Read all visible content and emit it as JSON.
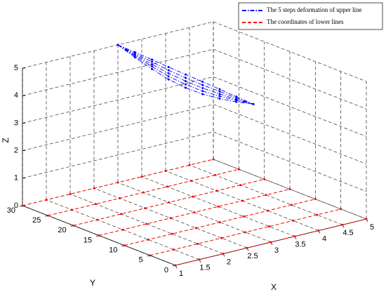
{
  "chart_data": {
    "type": "line3d",
    "xlabel": "X",
    "ylabel": "Y",
    "zlabel": "Z",
    "xlim": [
      1,
      5
    ],
    "ylim": [
      0,
      30
    ],
    "zlim": [
      0,
      5
    ],
    "xticks": [
      1,
      1.5,
      2,
      2.5,
      3,
      3.5,
      4,
      4.5,
      5
    ],
    "yticks": [
      0,
      5,
      10,
      15,
      20,
      25,
      30
    ],
    "zticks": [
      0,
      1,
      2,
      3,
      4,
      5
    ],
    "grid": true,
    "legend": "upper right",
    "series": [
      {
        "name": "The 5 steps deformation of upper line",
        "color": "#0000ff",
        "style": "dashdot",
        "lines": [
          {
            "x": [
              3,
              3.09,
              3.18,
              3.26,
              3.35,
              3.44,
              3.53,
              3.61,
              3.7
            ],
            "y": [
              30,
              27.5,
              25,
              22.5,
              20,
              17.5,
              15,
              12.5,
              10
            ],
            "z": [
              5,
              4.88,
              4.75,
              4.63,
              4.5,
              4.38,
              4.25,
              4.13,
              4
            ]
          },
          {
            "x": [
              3,
              3.09,
              3.18,
              3.26,
              3.35,
              3.44,
              3.53,
              3.61,
              3.7
            ],
            "y": [
              30,
              27.5,
              25,
              22.5,
              20,
              17.5,
              15,
              12.5,
              10
            ],
            "z": [
              5,
              4.83,
              4.67,
              4.51,
              4.38,
              4.26,
              4.17,
              4.08,
              4
            ]
          },
          {
            "x": [
              3,
              3.09,
              3.18,
              3.26,
              3.35,
              3.44,
              3.53,
              3.61,
              3.7
            ],
            "y": [
              30,
              27.5,
              25,
              22.5,
              20,
              17.5,
              15,
              12.5,
              10
            ],
            "z": [
              5,
              4.78,
              4.58,
              4.4,
              4.26,
              4.15,
              4.08,
              4.03,
              4
            ]
          },
          {
            "x": [
              3,
              3.09,
              3.18,
              3.26,
              3.35,
              3.44,
              3.53,
              3.61,
              3.7
            ],
            "y": [
              30,
              27.5,
              25,
              22.5,
              20,
              17.5,
              15,
              12.5,
              10
            ],
            "z": [
              5,
              4.74,
              4.5,
              4.29,
              4.14,
              4.04,
              4,
              3.99,
              4
            ]
          },
          {
            "x": [
              3,
              3.09,
              3.18,
              3.26,
              3.35,
              3.44,
              3.53,
              3.61,
              3.7
            ],
            "y": [
              30,
              27.5,
              25,
              22.5,
              20,
              17.5,
              15,
              12.5,
              10
            ],
            "z": [
              5,
              4.69,
              4.41,
              4.18,
              4.02,
              3.93,
              3.91,
              3.94,
              4
            ]
          }
        ]
      },
      {
        "name": "The coordinates of lower lines",
        "color": "#ff0000",
        "style": "dashed",
        "lines": [
          {
            "x": [
              1,
              1.5,
              2,
              2.5,
              3,
              3.5,
              4,
              4.5,
              5
            ],
            "y": [
              0,
              0,
              0,
              0,
              0,
              0,
              0,
              0,
              0
            ],
            "z": [
              0,
              0,
              0,
              0,
              0,
              0,
              0,
              0,
              0
            ]
          },
          {
            "x": [
              1,
              1.5,
              2,
              2.5,
              3,
              3.5,
              4,
              4.5,
              5
            ],
            "y": [
              5,
              5,
              5,
              5,
              5,
              5,
              5,
              5,
              5
            ],
            "z": [
              0,
              0,
              0,
              0,
              0,
              0,
              0,
              0,
              0
            ]
          },
          {
            "x": [
              1,
              1.5,
              2,
              2.5,
              3,
              3.5,
              4,
              4.5,
              5
            ],
            "y": [
              10,
              10,
              10,
              10,
              10,
              10,
              10,
              10,
              10
            ],
            "z": [
              0,
              0,
              0,
              0,
              0,
              0,
              0,
              0,
              0
            ]
          },
          {
            "x": [
              1,
              1.5,
              2,
              2.5,
              3,
              3.5,
              4,
              4.5,
              5
            ],
            "y": [
              15,
              15,
              15,
              15,
              15,
              15,
              15,
              15,
              15
            ],
            "z": [
              0,
              0,
              0,
              0,
              0,
              0,
              0,
              0,
              0
            ]
          },
          {
            "x": [
              1,
              1.5,
              2,
              2.5,
              3,
              3.5,
              4,
              4.5,
              5
            ],
            "y": [
              20,
              20,
              20,
              20,
              20,
              20,
              20,
              20,
              20
            ],
            "z": [
              0,
              0,
              0,
              0,
              0,
              0,
              0,
              0,
              0
            ]
          },
          {
            "x": [
              1,
              1.5,
              2,
              2.5,
              3,
              3.5,
              4,
              4.5,
              5
            ],
            "y": [
              25,
              25,
              25,
              25,
              25,
              25,
              25,
              25,
              25
            ],
            "z": [
              0,
              0,
              0,
              0,
              0,
              0,
              0,
              0,
              0
            ]
          },
          {
            "x": [
              1,
              1.5,
              2,
              2.5,
              3,
              3.5,
              4,
              4.5,
              5
            ],
            "y": [
              30,
              30,
              30,
              30,
              30,
              30,
              30,
              30,
              30
            ],
            "z": [
              0,
              0,
              0,
              0,
              0,
              0,
              0,
              0,
              0
            ]
          }
        ]
      }
    ]
  }
}
